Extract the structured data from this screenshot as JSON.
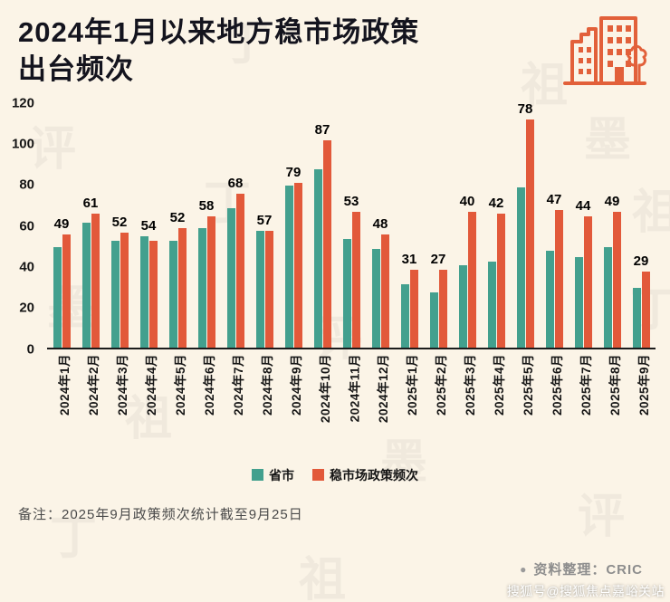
{
  "title": {
    "line1": "2024年1月以来地方稳市场政策",
    "line2": "出台频次"
  },
  "chart_data": {
    "type": "bar",
    "categories": [
      "2024年1月",
      "2024年2月",
      "2024年3月",
      "2024年4月",
      "2024年5月",
      "2024年6月",
      "2024年7月",
      "2024年8月",
      "2024年9月",
      "2024年10月",
      "2024年11月",
      "2024年12月",
      "2025年1月",
      "2025年2月",
      "2025年3月",
      "2025年4月",
      "2025年5月",
      "2025年6月",
      "2025年7月",
      "2025年8月",
      "2025年9月"
    ],
    "series": [
      {
        "name": "省市",
        "color": "#43a08e",
        "values": [
          49,
          61,
          52,
          54,
          52,
          58,
          68,
          57,
          79,
          87,
          53,
          48,
          31,
          27,
          40,
          42,
          78,
          47,
          44,
          49,
          29
        ]
      },
      {
        "name": "稳市场政策频次",
        "color": "#e2593a",
        "values": [
          55,
          65,
          56,
          52,
          58,
          64,
          75,
          57,
          80,
          101,
          66,
          55,
          38,
          38,
          66,
          65,
          111,
          67,
          64,
          66,
          37
        ]
      }
    ],
    "data_labels": [
      49,
      61,
      52,
      54,
      52,
      58,
      68,
      57,
      79,
      87,
      53,
      48,
      31,
      27,
      40,
      42,
      78,
      47,
      44,
      49,
      29
    ],
    "ylim": [
      0,
      120
    ],
    "yticks": [
      0,
      20,
      40,
      60,
      80,
      100,
      120
    ],
    "legend_position": "bottom",
    "grid": false
  },
  "note": "备注：2025年9月政策频次统计截至9月25日",
  "source": {
    "bullet": "●",
    "text": "资料整理：CRIC"
  },
  "watermark_corner": "搜狐号@搜狐焦点嘉峪关站",
  "watermark_chars": [
    "丁",
    "祖",
    "墨",
    "评"
  ],
  "icon": {
    "name": "buildings-icon",
    "color": "#e2603a"
  }
}
